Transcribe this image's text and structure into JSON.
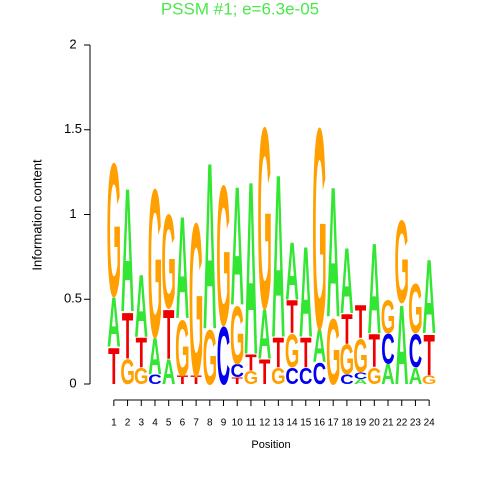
{
  "chart_data": {
    "type": "logo",
    "title": "PSSM #1; e=6.3e-05",
    "title_color": "#4be84b",
    "x_label": "Position",
    "y_label": "Information content",
    "x": [
      1,
      2,
      3,
      4,
      5,
      6,
      7,
      8,
      9,
      10,
      11,
      12,
      13,
      14,
      15,
      16,
      17,
      18,
      19,
      20,
      21,
      22,
      23,
      24
    ],
    "xlim": [
      0.5,
      24.5
    ],
    "xticks": [
      1,
      2,
      3,
      4,
      5,
      6,
      7,
      8,
      9,
      10,
      11,
      12,
      13,
      14,
      15,
      16,
      17,
      18,
      19,
      20,
      21,
      22,
      23,
      24
    ],
    "ylim": [
      0,
      2
    ],
    "yticks": [
      0,
      0.5,
      1,
      1.5,
      2
    ],
    "series": [
      {
        "name": "A",
        "color": "#33e633",
        "values": [
          0.3,
          0.75,
          0.38,
          0.22,
          0.15,
          0.62,
          0,
          1.01,
          0,
          0.72,
          1.05,
          0.3,
          0.99,
          0.35,
          0.55,
          0.2,
          0.79,
          0.4,
          0.03,
          0.55,
          0.12,
          0.48,
          0.1,
          0.45
        ]
      },
      {
        "name": "C",
        "color": "#0000ee",
        "values": [
          0,
          0,
          0,
          0.06,
          0,
          0,
          0,
          0,
          0.35,
          0.08,
          0,
          0,
          0,
          0.1,
          0.1,
          0.13,
          0,
          0.06,
          0.04,
          0,
          0.18,
          0,
          0.2,
          0
        ]
      },
      {
        "name": "G",
        "color": "#ffa000",
        "values": [
          0.81,
          0.15,
          0.1,
          0.9,
          0.57,
          0.34,
          0.93,
          0.33,
          0.85,
          0.35,
          0.08,
          1.1,
          0.1,
          0.2,
          0,
          1.22,
          0.4,
          0.18,
          0.2,
          0.1,
          0.2,
          0.5,
          0.3,
          0.05
        ]
      },
      {
        "name": "T",
        "color": "#ee0000",
        "values": [
          0.22,
          0.28,
          0.18,
          0,
          0.3,
          0.05,
          0.05,
          0,
          0,
          0.04,
          0.1,
          0.15,
          0.18,
          0.2,
          0.18,
          0,
          0,
          0.18,
          0.2,
          0.2,
          0,
          0,
          0,
          0.25
        ]
      }
    ]
  }
}
